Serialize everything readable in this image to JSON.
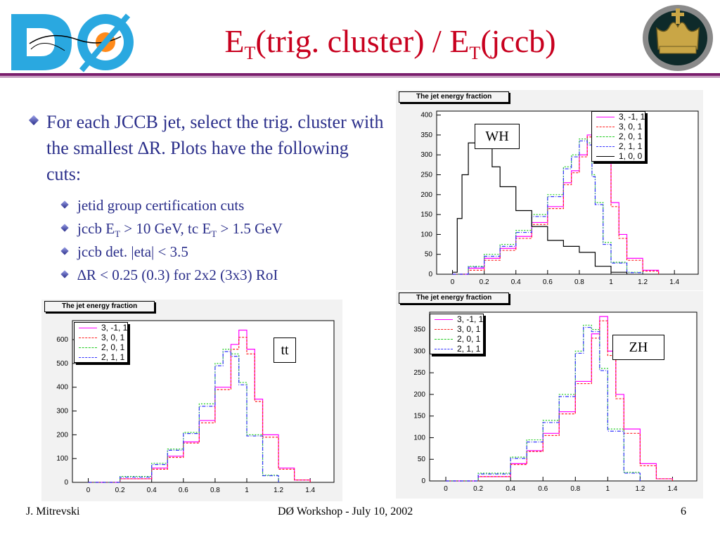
{
  "title": {
    "main": "E",
    "sub1": "T",
    "mid": "(trig. cluster) / E",
    "sub2": "T",
    "end": "(jccb)"
  },
  "bullets": {
    "main": "For each JCCB jet, select the trig. cluster with the smallest ∆R. Plots have the following cuts:",
    "sub1": "jetid group certification cuts",
    "sub2_a": "jccb E",
    "sub2_sub1": "T",
    "sub2_b": " > 10 GeV, tc E",
    "sub2_sub2": "T",
    "sub2_c": " > 1.5 GeV",
    "sub3": "jccb det. |eta| < 3.5",
    "sub4": "∆R < 0.25 (0.3) for 2x2 (3x3) RoI"
  },
  "footer": {
    "left": "J. Mitrevski",
    "center": "DØ Workshop - July 10, 2002",
    "right": "6"
  },
  "logo_left": {
    "text": "DØ"
  },
  "colors": {
    "title": "#c8001e",
    "rule": "#7a1e6c",
    "text": "#2a2e8a",
    "s1": "#ff00ff",
    "s2": "#ff2020",
    "s3": "#22cc22",
    "s4": "#3333ff",
    "s5": "#000000"
  },
  "chart_data": [
    {
      "type": "line",
      "label": "WH",
      "title": "The jet energy fraction",
      "xlim": [
        -0.1,
        1.55
      ],
      "ylim": [
        0,
        410
      ],
      "xticks": [
        0,
        0.2,
        0.4,
        0.6,
        0.8,
        1,
        1.2,
        1.4
      ],
      "yticks": [
        0,
        50,
        100,
        150,
        200,
        250,
        300,
        350,
        400
      ],
      "legend": [
        "3, -1, 1",
        "3, 0, 1",
        "2, 0, 1",
        "2, 1, 1",
        "1, 0, 0"
      ],
      "series": [
        {
          "name": "3, -1, 1",
          "x": [
            0,
            0.1,
            0.2,
            0.3,
            0.4,
            0.5,
            0.6,
            0.7,
            0.75,
            0.8,
            0.85,
            0.88,
            0.9,
            0.95,
            1.0,
            1.05,
            1.1,
            1.2,
            1.3
          ],
          "values": [
            0,
            15,
            40,
            65,
            95,
            130,
            170,
            230,
            260,
            300,
            350,
            390,
            360,
            290,
            180,
            100,
            40,
            10,
            0
          ]
        },
        {
          "name": "3, 0, 1",
          "x": [
            0,
            0.1,
            0.2,
            0.3,
            0.4,
            0.5,
            0.6,
            0.7,
            0.75,
            0.8,
            0.85,
            0.88,
            0.9,
            0.95,
            1.0,
            1.05,
            1.1,
            1.2,
            1.3
          ],
          "values": [
            0,
            10,
            35,
            60,
            90,
            125,
            165,
            225,
            255,
            295,
            345,
            380,
            350,
            280,
            170,
            90,
            35,
            8,
            0
          ]
        },
        {
          "name": "2, 0, 1",
          "x": [
            0,
            0.1,
            0.2,
            0.3,
            0.4,
            0.5,
            0.6,
            0.7,
            0.75,
            0.8,
            0.85,
            0.88,
            0.9,
            0.95,
            1.0,
            1.1,
            1.2
          ],
          "values": [
            0,
            20,
            50,
            75,
            110,
            150,
            200,
            270,
            300,
            340,
            330,
            250,
            180,
            80,
            30,
            5,
            0
          ]
        },
        {
          "name": "2, 1, 1",
          "x": [
            0,
            0.1,
            0.2,
            0.3,
            0.4,
            0.5,
            0.6,
            0.7,
            0.75,
            0.8,
            0.85,
            0.88,
            0.9,
            0.95,
            1.0,
            1.1,
            1.2
          ],
          "values": [
            0,
            18,
            45,
            70,
            105,
            145,
            195,
            265,
            295,
            335,
            325,
            245,
            175,
            75,
            28,
            4,
            0
          ]
        },
        {
          "name": "1, 0, 0",
          "x": [
            0,
            0.03,
            0.06,
            0.1,
            0.15,
            0.2,
            0.25,
            0.3,
            0.4,
            0.5,
            0.6,
            0.7,
            0.8,
            0.9,
            1.0,
            1.1
          ],
          "values": [
            5,
            140,
            250,
            330,
            370,
            330,
            270,
            220,
            160,
            120,
            85,
            70,
            55,
            20,
            5,
            0
          ]
        }
      ]
    },
    {
      "type": "line",
      "label": "tt",
      "title": "The jet energy fraction",
      "xlim": [
        -0.1,
        1.55
      ],
      "ylim": [
        0,
        680
      ],
      "xticks": [
        0,
        0.2,
        0.4,
        0.6,
        0.8,
        1,
        1.2,
        1.4
      ],
      "yticks": [
        0,
        100,
        200,
        300,
        400,
        500,
        600
      ],
      "legend": [
        "3, -1, 1",
        "3, 0, 1",
        "2, 0, 1",
        "2, 1, 1"
      ],
      "series": [
        {
          "name": "3, -1, 1",
          "x": [
            0,
            0.2,
            0.4,
            0.5,
            0.6,
            0.7,
            0.8,
            0.9,
            0.95,
            1.0,
            1.05,
            1.1,
            1.2,
            1.3,
            1.4
          ],
          "values": [
            0,
            15,
            60,
            110,
            170,
            260,
            400,
            580,
            640,
            560,
            350,
            200,
            60,
            10,
            0
          ]
        },
        {
          "name": "3, 0, 1",
          "x": [
            0,
            0.2,
            0.4,
            0.5,
            0.6,
            0.7,
            0.8,
            0.9,
            0.95,
            1.0,
            1.05,
            1.1,
            1.2,
            1.3,
            1.4
          ],
          "values": [
            0,
            15,
            55,
            105,
            165,
            250,
            390,
            560,
            610,
            540,
            340,
            190,
            55,
            10,
            0
          ]
        },
        {
          "name": "2, 0, 1",
          "x": [
            0,
            0.2,
            0.4,
            0.5,
            0.6,
            0.7,
            0.8,
            0.85,
            0.9,
            0.95,
            1.0,
            1.1,
            1.2
          ],
          "values": [
            0,
            25,
            80,
            140,
            210,
            330,
            500,
            560,
            540,
            420,
            200,
            30,
            0
          ]
        },
        {
          "name": "2, 1, 1",
          "x": [
            0,
            0.2,
            0.4,
            0.5,
            0.6,
            0.7,
            0.8,
            0.85,
            0.9,
            0.95,
            1.0,
            1.1,
            1.2
          ],
          "values": [
            0,
            22,
            75,
            135,
            205,
            320,
            490,
            550,
            530,
            410,
            195,
            28,
            0
          ]
        }
      ]
    },
    {
      "type": "line",
      "label": "ZH",
      "title": "The jet energy fraction",
      "xlim": [
        -0.1,
        1.55
      ],
      "ylim": [
        0,
        390
      ],
      "xticks": [
        0,
        0.2,
        0.4,
        0.6,
        0.8,
        1,
        1.2,
        1.4
      ],
      "yticks": [
        0,
        50,
        100,
        150,
        200,
        250,
        300,
        350
      ],
      "legend": [
        "3, -1, 1",
        "3, 0, 1",
        "2, 0, 1",
        "2, 1, 1"
      ],
      "series": [
        {
          "name": "3, -1, 1",
          "x": [
            0,
            0.2,
            0.4,
            0.5,
            0.6,
            0.7,
            0.8,
            0.9,
            0.95,
            1.0,
            1.05,
            1.1,
            1.2,
            1.3,
            1.4
          ],
          "values": [
            0,
            10,
            40,
            70,
            110,
            160,
            230,
            340,
            380,
            300,
            200,
            120,
            40,
            5,
            0
          ]
        },
        {
          "name": "3, 0, 1",
          "x": [
            0,
            0.2,
            0.4,
            0.5,
            0.6,
            0.7,
            0.8,
            0.9,
            0.95,
            1.0,
            1.05,
            1.1,
            1.2,
            1.3,
            1.4
          ],
          "values": [
            0,
            10,
            38,
            68,
            105,
            155,
            225,
            330,
            370,
            290,
            190,
            110,
            35,
            5,
            0
          ]
        },
        {
          "name": "2, 0, 1",
          "x": [
            0,
            0.2,
            0.4,
            0.5,
            0.6,
            0.7,
            0.8,
            0.85,
            0.9,
            0.95,
            1.0,
            1.1,
            1.2
          ],
          "values": [
            0,
            18,
            55,
            95,
            140,
            200,
            300,
            360,
            350,
            260,
            120,
            20,
            0
          ]
        },
        {
          "name": "2, 1, 1",
          "x": [
            0,
            0.2,
            0.4,
            0.5,
            0.6,
            0.7,
            0.8,
            0.85,
            0.9,
            0.95,
            1.0,
            1.1,
            1.2
          ],
          "values": [
            0,
            16,
            52,
            90,
            135,
            195,
            295,
            355,
            345,
            255,
            115,
            18,
            0
          ]
        }
      ]
    }
  ]
}
